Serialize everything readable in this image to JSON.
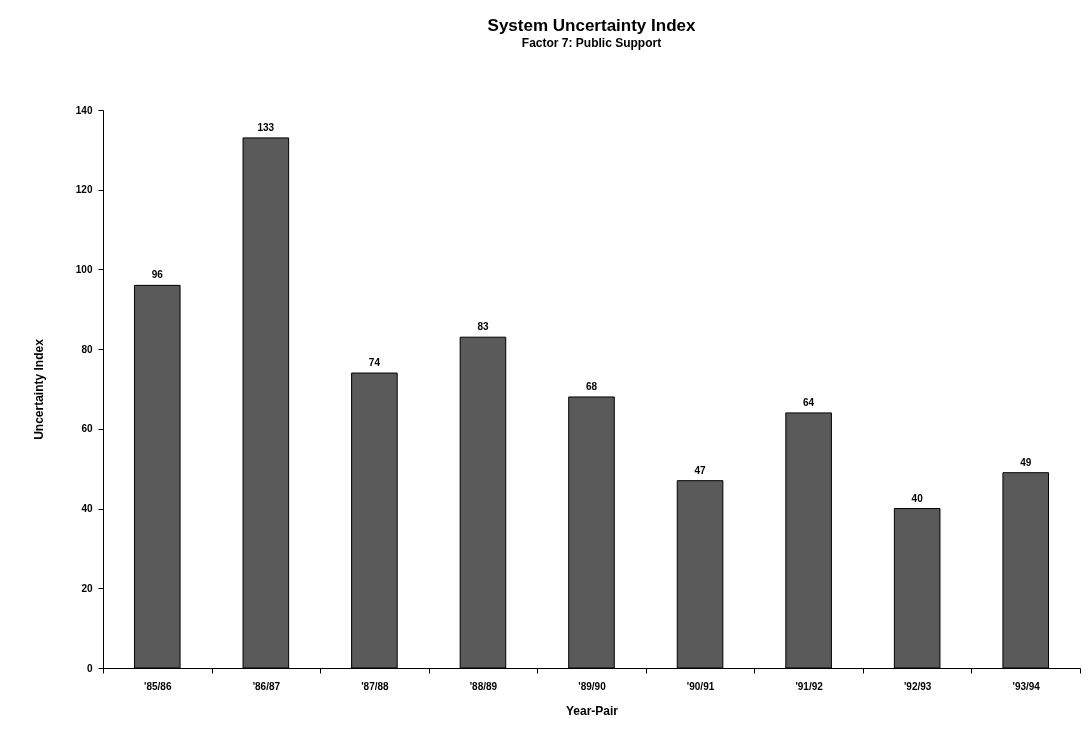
{
  "chart_data": {
    "type": "bar",
    "title": "System Uncertainty Index",
    "subtitle": "Factor 7:  Public Support",
    "xlabel": "Year-Pair",
    "ylabel": "Uncertainty Index",
    "categories": [
      "'85/86",
      "'86/87",
      "'87/88",
      "'88/89",
      "'89/90",
      "'90/91",
      "'91/92",
      "'92/93",
      "'93/94"
    ],
    "values": [
      96,
      133,
      74,
      83,
      68,
      47,
      64,
      40,
      49
    ],
    "color": "#5a5a5a",
    "ylim": [
      0,
      140
    ],
    "yticks": [
      0,
      20,
      40,
      60,
      80,
      100,
      120,
      140
    ],
    "grid": false,
    "data_labels": true
  }
}
